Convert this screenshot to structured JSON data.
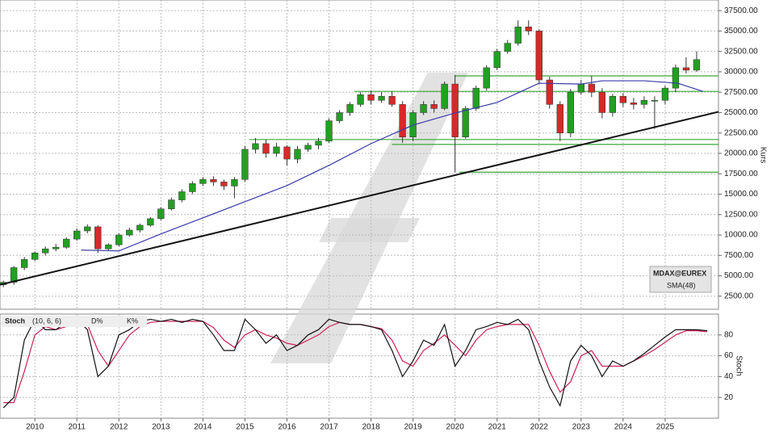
{
  "chart_data": [
    {
      "type": "candlestick",
      "series_name": "MDAX@EUREX",
      "y_label": "Kurs",
      "up_color": "#22a022",
      "down_color": "#d42a2a",
      "x": [
        2009.25,
        2009.5,
        2009.75,
        2010,
        2010.25,
        2010.5,
        2010.75,
        2011,
        2011.25,
        2011.5,
        2011.75,
        2012,
        2012.25,
        2012.5,
        2012.75,
        2013,
        2013.25,
        2013.5,
        2013.75,
        2014,
        2014.25,
        2014.5,
        2014.75,
        2015,
        2015.25,
        2015.5,
        2015.75,
        2016,
        2016.25,
        2016.5,
        2016.75,
        2017,
        2017.25,
        2017.5,
        2017.75,
        2018,
        2018.25,
        2018.5,
        2018.75,
        2019,
        2019.25,
        2019.5,
        2019.75,
        2020,
        2020.25,
        2020.5,
        2020.75,
        2021,
        2021.25,
        2021.5,
        2021.75,
        2022,
        2022.25,
        2022.5,
        2022.75,
        2023,
        2023.25,
        2023.5,
        2023.75,
        2024,
        2024.25,
        2024.5,
        2024.75,
        2025,
        2025.25,
        2025.5,
        2025.75
      ],
      "open": [
        3900,
        4200,
        6000,
        7000,
        7800,
        8300,
        8500,
        9500,
        10500,
        11000,
        8300,
        8800,
        10000,
        10600,
        11200,
        12000,
        13200,
        14300,
        15300,
        16300,
        16800,
        16500,
        16000,
        16800,
        20500,
        21200,
        20000,
        20800,
        19300,
        20500,
        21000,
        21500,
        24000,
        25000,
        26000,
        27200,
        26500,
        27000,
        26000,
        22000,
        25000,
        26000,
        25500,
        28500,
        22000,
        25500,
        28000,
        30500,
        32500,
        33500,
        35500,
        35000,
        29000,
        26000,
        22500,
        27500,
        28500,
        27500,
        25000,
        27000,
        26200,
        26000,
        26500,
        26500,
        28000,
        30500,
        30200
      ],
      "high": [
        4400,
        6200,
        7300,
        8000,
        8600,
        8900,
        9700,
        10800,
        11300,
        11200,
        9000,
        10200,
        10900,
        11400,
        12200,
        13400,
        14600,
        15600,
        16600,
        17100,
        17200,
        16800,
        17100,
        20900,
        21900,
        21700,
        21300,
        21000,
        20900,
        21300,
        21900,
        24300,
        25300,
        26300,
        27500,
        27700,
        27500,
        27600,
        26400,
        25300,
        26400,
        26500,
        28800,
        29600,
        25800,
        28300,
        30800,
        32800,
        33900,
        36300,
        36300,
        35200,
        29400,
        26400,
        27900,
        29000,
        29500,
        28000,
        27300,
        27400,
        26800,
        27000,
        27000,
        28300,
        30900,
        31800,
        32500
      ],
      "low": [
        3600,
        3900,
        5700,
        6800,
        7500,
        8000,
        8300,
        9300,
        10200,
        7800,
        8000,
        8600,
        9800,
        10300,
        11000,
        11800,
        13000,
        14000,
        15000,
        16000,
        16000,
        15500,
        14500,
        16500,
        20000,
        19500,
        19600,
        18500,
        18800,
        20200,
        20500,
        21300,
        23700,
        24600,
        25700,
        26000,
        26200,
        25700,
        21300,
        21500,
        24700,
        25000,
        25300,
        17700,
        21800,
        25200,
        27700,
        30200,
        32200,
        33200,
        34500,
        28500,
        25500,
        21500,
        22000,
        27200,
        26900,
        24300,
        24500,
        25700,
        25400,
        25500,
        23000,
        26000,
        27500,
        29800,
        30000
      ],
      "close": [
        4200,
        6000,
        7000,
        7800,
        8300,
        8500,
        9500,
        10500,
        11000,
        8300,
        8800,
        10000,
        10600,
        11200,
        12000,
        13200,
        14300,
        15300,
        16300,
        16800,
        16500,
        16000,
        16800,
        20500,
        21200,
        20000,
        20800,
        19300,
        20500,
        21000,
        21500,
        24000,
        25000,
        26000,
        27200,
        26500,
        27000,
        26000,
        22000,
        25000,
        26000,
        25500,
        28500,
        22000,
        25500,
        28000,
        30500,
        32500,
        33500,
        35500,
        35000,
        29000,
        26000,
        22500,
        27500,
        28500,
        27500,
        25000,
        27000,
        26200,
        26000,
        26500,
        26500,
        28000,
        30500,
        30200,
        31500
      ],
      "sma": {
        "name": "SMA(48)",
        "color": "#3a3aa8",
        "x": [
          2011.1,
          2012,
          2013,
          2014,
          2015,
          2016,
          2017,
          2018,
          2019,
          2020,
          2021,
          2022,
          2023,
          2023.5,
          2024.5,
          2025.3,
          2025.9
        ],
        "values": [
          8150,
          8050,
          10130,
          12100,
          14080,
          16060,
          18530,
          21200,
          23470,
          24950,
          26240,
          28600,
          28500,
          28900,
          28900,
          28600,
          27600
        ]
      },
      "trendline": {
        "color": "#111111",
        "x": [
          2009.17,
          2026.27
        ],
        "values": [
          3900,
          25100
        ]
      },
      "levels": {
        "color": "#3aa83a",
        "values": [
          29500,
          27600,
          21700,
          21100,
          17700
        ],
        "x_start": [
          2020.0,
          2017.6,
          2015.1,
          2018.5,
          2020.1
        ]
      },
      "xlim": [
        2009.17,
        2026.27
      ],
      "ylim": [
        900,
        38800
      ],
      "yticks": [
        {
          "value": 2500,
          "label": "2500.00"
        },
        {
          "value": 5000,
          "label": "5000.00"
        },
        {
          "value": 7500,
          "label": "7500.00"
        },
        {
          "value": 10000,
          "label": "10000.00"
        },
        {
          "value": 12500,
          "label": "12500.00"
        },
        {
          "value": 15000,
          "label": "15000.00"
        },
        {
          "value": 17500,
          "label": "17500.00"
        },
        {
          "value": 20000,
          "label": "20000.00"
        },
        {
          "value": 22500,
          "label": "22500.00"
        },
        {
          "value": 25000,
          "label": "25000.00"
        },
        {
          "value": 27500,
          "label": "27500.00"
        },
        {
          "value": 30000,
          "label": "30000.00"
        },
        {
          "value": 32500,
          "label": "32500.00"
        },
        {
          "value": 35000,
          "label": "35000.00"
        },
        {
          "value": 37500,
          "label": "37500.00"
        }
      ],
      "xticks": [
        2010,
        2011,
        2012,
        2013,
        2014,
        2015,
        2016,
        2017,
        2018,
        2019,
        2020,
        2021,
        2022,
        2023,
        2024,
        2025
      ],
      "grid": true
    },
    {
      "type": "line",
      "title": "Stoch",
      "parameters": "(10, 6, 6)",
      "y_label": "Stoch",
      "x": [
        2009.25,
        2009.5,
        2009.75,
        2010,
        2010.25,
        2010.5,
        2010.75,
        2011,
        2011.25,
        2011.5,
        2011.75,
        2012,
        2012.25,
        2012.5,
        2012.75,
        2013,
        2013.25,
        2013.5,
        2013.75,
        2014,
        2014.25,
        2014.5,
        2014.75,
        2015,
        2015.25,
        2015.5,
        2015.75,
        2016,
        2016.25,
        2016.5,
        2016.75,
        2017,
        2017.25,
        2017.5,
        2017.75,
        2018,
        2018.25,
        2018.5,
        2018.75,
        2019,
        2019.25,
        2019.5,
        2019.75,
        2020,
        2020.25,
        2020.5,
        2020.75,
        2021,
        2021.25,
        2021.5,
        2021.75,
        2022,
        2022.25,
        2022.5,
        2022.75,
        2023,
        2023.25,
        2023.5,
        2023.75,
        2024,
        2024.25,
        2024.5,
        2024.75,
        2025,
        2025.25,
        2025.5,
        2025.75,
        2026
      ],
      "series": [
        {
          "name": "D%",
          "color": "#cc2255",
          "values": [
            15,
            15,
            45,
            80,
            88,
            85,
            88,
            92,
            90,
            65,
            50,
            65,
            80,
            88,
            92,
            93,
            93,
            93,
            93,
            93,
            87,
            75,
            68,
            80,
            85,
            80,
            77,
            72,
            70,
            75,
            80,
            88,
            92,
            90,
            90,
            88,
            86,
            75,
            55,
            50,
            65,
            72,
            80,
            70,
            60,
            75,
            85,
            88,
            90,
            90,
            90,
            70,
            45,
            25,
            35,
            60,
            65,
            50,
            50,
            50,
            55,
            60,
            66,
            73,
            80,
            84,
            84,
            83
          ]
        },
        {
          "name": "K%",
          "color": "#111111",
          "values": [
            10,
            20,
            75,
            95,
            85,
            85,
            92,
            95,
            85,
            40,
            50,
            80,
            85,
            93,
            95,
            93,
            95,
            92,
            95,
            93,
            80,
            65,
            65,
            95,
            85,
            72,
            80,
            65,
            70,
            80,
            85,
            95,
            92,
            90,
            90,
            88,
            85,
            65,
            40,
            55,
            75,
            70,
            90,
            50,
            65,
            85,
            88,
            92,
            90,
            95,
            85,
            55,
            30,
            12,
            55,
            70,
            60,
            40,
            55,
            50,
            55,
            62,
            70,
            78,
            85,
            85,
            85,
            84
          ]
        }
      ],
      "xlim": [
        2009.17,
        2026.27
      ],
      "ylim": [
        0,
        100
      ],
      "yticks": [
        20,
        40,
        60,
        80
      ],
      "xticks": [
        2010,
        2011,
        2012,
        2013,
        2014,
        2015,
        2016,
        2017,
        2018,
        2019,
        2020,
        2021,
        2022,
        2023,
        2024,
        2025
      ],
      "grid": true
    }
  ]
}
